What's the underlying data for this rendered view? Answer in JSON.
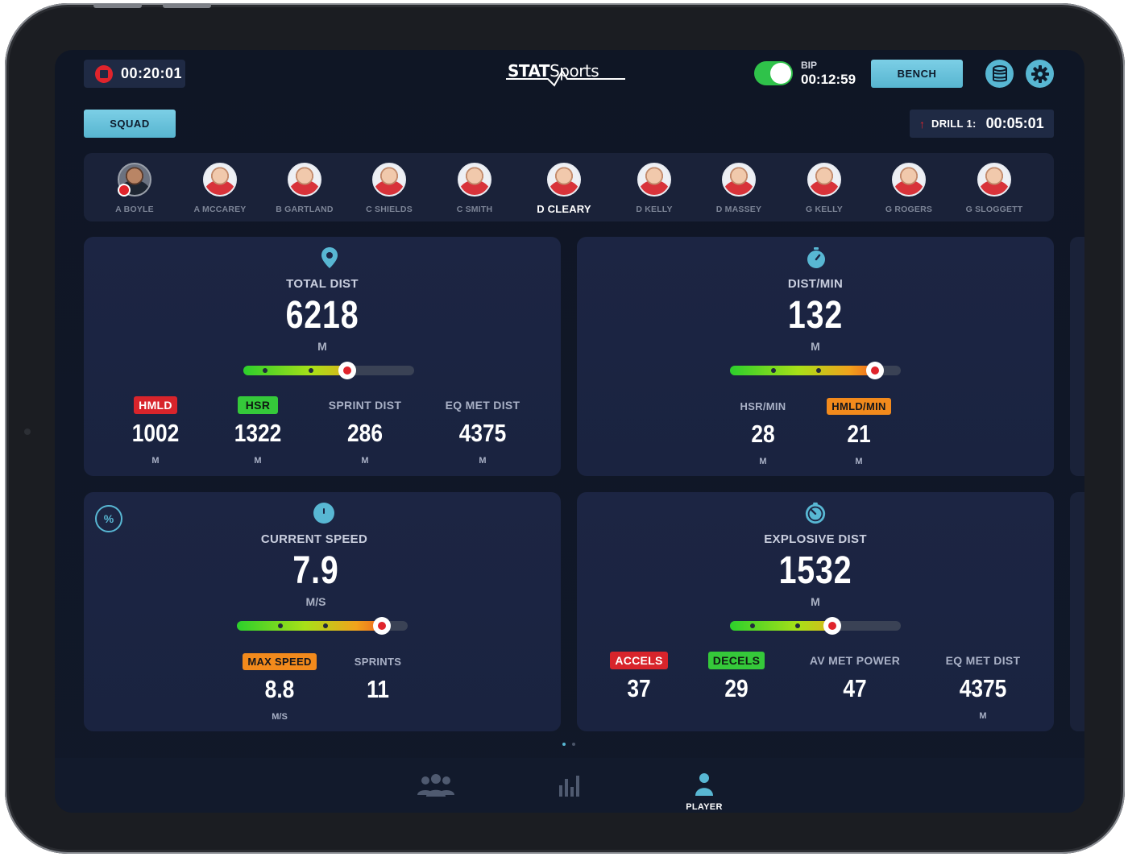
{
  "top_bar": {
    "recording_time": "00:20:01",
    "logo_text": "STATSports",
    "bip_label": "BIP",
    "bip_time": "00:12:59",
    "bip_toggle_on": true,
    "bench_label": "BENCH"
  },
  "toolbar": {
    "squad_label": "SQUAD",
    "drill_label": "DRILL 1:",
    "drill_time": "00:05:01"
  },
  "players": [
    {
      "name": "A BOYLE"
    },
    {
      "name": "A MCCAREY"
    },
    {
      "name": "B GARTLAND"
    },
    {
      "name": "C SHIELDS"
    },
    {
      "name": "C SMITH"
    },
    {
      "name": "D CLEARY"
    },
    {
      "name": "D KELLY"
    },
    {
      "name": "D MASSEY"
    },
    {
      "name": "G KELLY"
    },
    {
      "name": "G ROGERS"
    },
    {
      "name": "G SLOGGETT"
    }
  ],
  "selected_player": "D CLEARY",
  "cards": {
    "total_dist": {
      "title": "TOTAL DIST",
      "value": "6218",
      "unit": "M",
      "level": 0.61,
      "subs": [
        {
          "label": "HMLD",
          "value": "1002",
          "unit": "M"
        },
        {
          "label": "HSR",
          "value": "1322",
          "unit": "M"
        },
        {
          "label": "SPRINT DIST",
          "value": "286",
          "unit": "M"
        },
        {
          "label": "EQ MET DIST",
          "value": "4375",
          "unit": "M"
        }
      ]
    },
    "dist_min": {
      "title": "DIST/MIN",
      "value": "132",
      "unit": "M",
      "level": 0.85,
      "subs": [
        {
          "label": "HSR/MIN",
          "value": "28",
          "unit": "M"
        },
        {
          "label": "HMLD/MIN",
          "value": "21",
          "unit": "M"
        }
      ]
    },
    "current_speed": {
      "title": "CURRENT SPEED",
      "value": "7.9",
      "unit": "M/S",
      "level": 0.85,
      "percent_symbol": "%",
      "subs": [
        {
          "label": "MAX SPEED",
          "value": "8.8",
          "unit": "M/S"
        },
        {
          "label": "SPRINTS",
          "value": "11",
          "unit": ""
        }
      ]
    },
    "explosive_dist": {
      "title": "EXPLOSIVE DIST",
      "value": "1532",
      "unit": "M",
      "level": 0.6,
      "subs": [
        {
          "label": "ACCELS",
          "value": "37",
          "unit": ""
        },
        {
          "label": "DECELS",
          "value": "29",
          "unit": ""
        },
        {
          "label": "AV MET POWER",
          "value": "47",
          "unit": ""
        },
        {
          "label": "EQ MET DIST",
          "value": "4375",
          "unit": "M"
        }
      ]
    }
  },
  "bottom_nav": {
    "player_label": "PLAYER"
  },
  "colors": {
    "accent": "#58b7d3",
    "record_red": "#e0242c",
    "toggle_green": "#2fc24a",
    "tag_red": "#d8242b",
    "tag_green": "#35c93a",
    "tag_orange": "#f28a1c"
  }
}
